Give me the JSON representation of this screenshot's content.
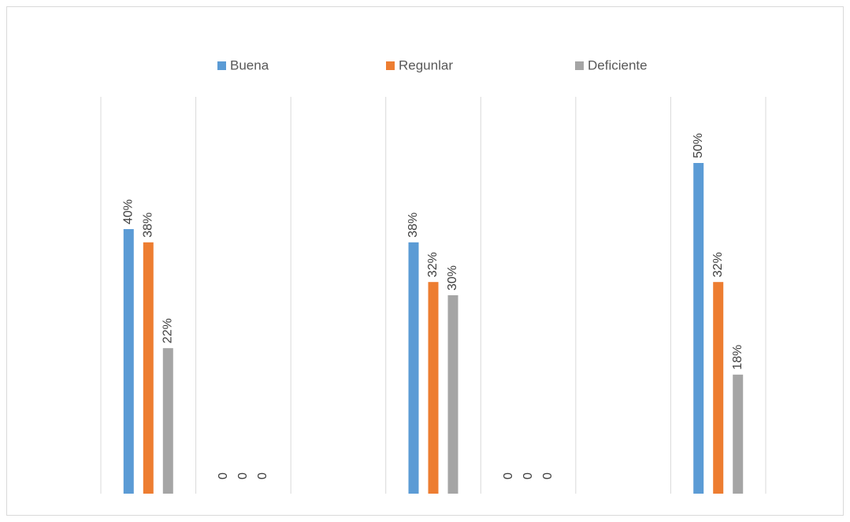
{
  "chart_data": {
    "type": "bar",
    "categories": [
      null,
      null,
      null,
      null,
      null,
      null,
      null
    ],
    "series": [
      {
        "name": "Buena",
        "color": "#5b9bd5",
        "values": [
          40,
          0,
          null,
          38,
          0,
          null,
          50
        ],
        "value_labels": [
          "40%",
          "0",
          null,
          "38%",
          "0",
          null,
          "50%"
        ]
      },
      {
        "name": "Regunlar",
        "color": "#ed7d31",
        "values": [
          38,
          0,
          null,
          32,
          0,
          null,
          32
        ],
        "value_labels": [
          "38%",
          "0",
          null,
          "32%",
          "0",
          null,
          "32%"
        ]
      },
      {
        "name": "Deficiente",
        "color": "#a5a5a5",
        "values": [
          22,
          0,
          null,
          30,
          0,
          null,
          18
        ],
        "value_labels": [
          "22%",
          "0",
          null,
          "30%",
          "0",
          null,
          "18%"
        ]
      }
    ],
    "ylim": [
      0,
      60
    ],
    "legend": "top",
    "grid": true
  }
}
